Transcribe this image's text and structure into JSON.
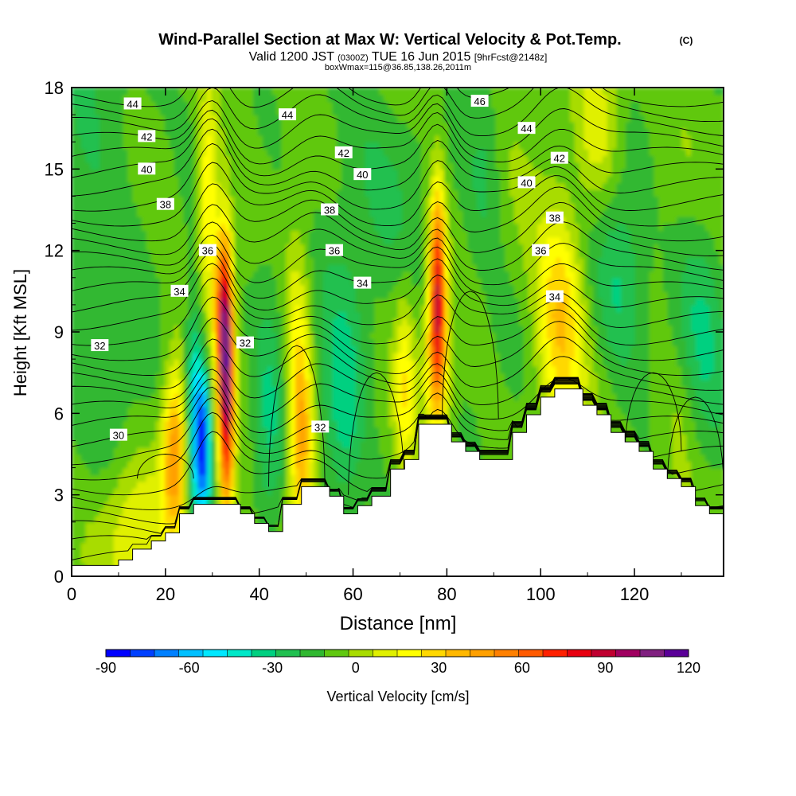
{
  "title": {
    "main": "Wind-Parallel Section at Max W: Vertical Velocity & Pot.Temp.",
    "copyright": "(C)",
    "valid_prefix": "Valid 1200 JST",
    "valid_z": "(0300Z)",
    "valid_date": "TUE 16 Jun 2015",
    "forecast": "[9hrFcst@2148z]",
    "box": "boxWmax=115@36.85,138.26,2011m"
  },
  "chart_data": {
    "type": "heatmap",
    "xlabel": "Distance [nm]",
    "ylabel": "Height [Kft MSL]",
    "xlim": [
      0,
      139
    ],
    "ylim": [
      0,
      18
    ],
    "x_ticks": [
      "0",
      "20",
      "40",
      "60",
      "80",
      "100",
      "120"
    ],
    "y_ticks": [
      "0",
      "3",
      "6",
      "9",
      "12",
      "15",
      "18"
    ],
    "colorbar": {
      "label": "Vertical Velocity [cm/s]",
      "tick_labels": [
        "-90",
        "-60",
        "-30",
        "0",
        "30",
        "60",
        "90",
        "120"
      ],
      "range": [
        -90,
        120
      ],
      "step": 10,
      "colors": [
        "#0000ff",
        "#0040ff",
        "#0080ff",
        "#00c0ff",
        "#00e8ff",
        "#00e8c8",
        "#00d080",
        "#20c050",
        "#30b830",
        "#60c810",
        "#a8dc00",
        "#e0f000",
        "#ffff00",
        "#ffd800",
        "#ffb800",
        "#ffa000",
        "#ff8000",
        "#ff5a00",
        "#ff2000",
        "#e80010",
        "#c00030",
        "#a00060",
        "#802080",
        "#5a0098"
      ]
    },
    "terrain_profile": [
      [
        0,
        0.4
      ],
      [
        10,
        0.4
      ],
      [
        10,
        0.6
      ],
      [
        13,
        0.6
      ],
      [
        13,
        1.0
      ],
      [
        17,
        1.0
      ],
      [
        17,
        1.3
      ],
      [
        20,
        1.3
      ],
      [
        20,
        1.6
      ],
      [
        23,
        1.6
      ],
      [
        23,
        2.3
      ],
      [
        26,
        2.3
      ],
      [
        26,
        2.65
      ],
      [
        36,
        2.65
      ],
      [
        36,
        2.3
      ],
      [
        39,
        2.3
      ],
      [
        39,
        1.95
      ],
      [
        42,
        1.95
      ],
      [
        42,
        1.65
      ],
      [
        45,
        1.65
      ],
      [
        45,
        2.65
      ],
      [
        49,
        2.65
      ],
      [
        49,
        3.3
      ],
      [
        55,
        3.3
      ],
      [
        55,
        2.95
      ],
      [
        58,
        2.95
      ],
      [
        58,
        2.3
      ],
      [
        61,
        2.3
      ],
      [
        61,
        2.6
      ],
      [
        64,
        2.6
      ],
      [
        64,
        2.95
      ],
      [
        68,
        2.95
      ],
      [
        68,
        3.95
      ],
      [
        71,
        3.95
      ],
      [
        71,
        4.3
      ],
      [
        74,
        4.3
      ],
      [
        74,
        5.6
      ],
      [
        81,
        5.6
      ],
      [
        81,
        4.95
      ],
      [
        84,
        4.95
      ],
      [
        84,
        4.6
      ],
      [
        87,
        4.6
      ],
      [
        87,
        4.3
      ],
      [
        94,
        4.3
      ],
      [
        94,
        5.3
      ],
      [
        97,
        5.3
      ],
      [
        97,
        5.95
      ],
      [
        100,
        5.95
      ],
      [
        100,
        6.6
      ],
      [
        103,
        6.6
      ],
      [
        103,
        6.9
      ],
      [
        109,
        6.9
      ],
      [
        109,
        6.3
      ],
      [
        112,
        6.3
      ],
      [
        112,
        5.95
      ],
      [
        115,
        5.95
      ],
      [
        115,
        5.3
      ],
      [
        118,
        5.3
      ],
      [
        118,
        4.95
      ],
      [
        121,
        4.95
      ],
      [
        121,
        4.6
      ],
      [
        124,
        4.6
      ],
      [
        124,
        3.95
      ],
      [
        127,
        3.95
      ],
      [
        127,
        3.6
      ],
      [
        130,
        3.6
      ],
      [
        130,
        3.3
      ],
      [
        133,
        3.3
      ],
      [
        133,
        2.6
      ],
      [
        136,
        2.6
      ],
      [
        136,
        2.3
      ],
      [
        139,
        2.3
      ]
    ],
    "vertical_velocity_cells": [
      {
        "x": 22,
        "z": 4.5,
        "sx": 1.8,
        "sz": 2.2,
        "w": 65
      },
      {
        "x": 28,
        "z": 5.0,
        "sx": 1.2,
        "sz": 2.0,
        "w": -80
      },
      {
        "x": 26,
        "z": 6.5,
        "sx": 1.3,
        "sz": 3.0,
        "w": -40
      },
      {
        "x": 33,
        "z": 7.0,
        "sx": 1.1,
        "sz": 3.5,
        "w": 115
      },
      {
        "x": 32,
        "z": 10.0,
        "sx": 1.3,
        "sz": 2.0,
        "w": 60
      },
      {
        "x": 29,
        "z": 14.0,
        "sx": 1.6,
        "sz": 2.5,
        "w": 45
      },
      {
        "x": 14,
        "z": 1.8,
        "sx": 5.0,
        "sz": 1.8,
        "w": 25
      },
      {
        "x": 42,
        "z": 6.0,
        "sx": 2.5,
        "sz": 3.5,
        "w": -22
      },
      {
        "x": 49,
        "z": 5.0,
        "sx": 1.8,
        "sz": 2.5,
        "w": 60
      },
      {
        "x": 48,
        "z": 9.5,
        "sx": 2.0,
        "sz": 2.5,
        "w": 25
      },
      {
        "x": 58,
        "z": 6.0,
        "sx": 3.0,
        "sz": 3.0,
        "w": -25
      },
      {
        "x": 71,
        "z": 7.0,
        "sx": 1.5,
        "sz": 2.5,
        "w": 30
      },
      {
        "x": 78,
        "z": 11.0,
        "sx": 1.2,
        "sz": 2.5,
        "w": 90
      },
      {
        "x": 78,
        "z": 8.0,
        "sx": 1.8,
        "sz": 2.0,
        "w": 50
      },
      {
        "x": 104,
        "z": 9.5,
        "sx": 3.5,
        "sz": 3.0,
        "w": 45
      },
      {
        "x": 88,
        "z": 15.0,
        "sx": 3.0,
        "sz": 2.5,
        "w": -18
      },
      {
        "x": 112,
        "z": 16.5,
        "sx": 3.0,
        "sz": 2.0,
        "w": 25
      },
      {
        "x": 117,
        "z": 10.5,
        "sx": 4.0,
        "sz": 2.5,
        "w": -25
      },
      {
        "x": 134,
        "z": 9.0,
        "sx": 4.0,
        "sz": 3.5,
        "w": -22
      },
      {
        "x": 130,
        "z": 5.5,
        "sx": 3.0,
        "sz": 2.5,
        "w": 15
      },
      {
        "x": 5,
        "z": 14.0,
        "sx": 8.0,
        "sz": 6.0,
        "w": -15
      },
      {
        "x": 60,
        "z": 13.0,
        "sx": 10.0,
        "sz": 4.0,
        "w": -12
      }
    ],
    "theta_contours": [
      {
        "label": "30",
        "z": 3.8,
        "label_at": [
          10,
          5.2
        ]
      },
      {
        "label": "32",
        "z": 8.8,
        "label_at": [
          6,
          8.5
        ]
      },
      {
        "label": "32",
        "label_at": [
          37,
          8.6
        ]
      },
      {
        "label": "32",
        "label_at": [
          53,
          5.5
        ]
      },
      {
        "label": "34",
        "z": 10.4,
        "label_at": [
          23,
          10.5
        ]
      },
      {
        "label": "34",
        "label_at": [
          62,
          10.8
        ]
      },
      {
        "label": "34",
        "label_at": [
          103,
          10.3
        ]
      },
      {
        "label": "36",
        "z": 12.0,
        "label_at": [
          29,
          12.0
        ]
      },
      {
        "label": "36",
        "label_at": [
          56,
          12.0
        ]
      },
      {
        "label": "36",
        "label_at": [
          100,
          12.0
        ]
      },
      {
        "label": "38",
        "z": 13.7,
        "label_at": [
          20,
          13.7
        ]
      },
      {
        "label": "38",
        "label_at": [
          55,
          13.5
        ]
      },
      {
        "label": "38",
        "label_at": [
          103,
          13.2
        ]
      },
      {
        "label": "40",
        "z": 15.0,
        "label_at": [
          16,
          15.0
        ]
      },
      {
        "label": "40",
        "label_at": [
          62,
          14.8
        ]
      },
      {
        "label": "40",
        "label_at": [
          97,
          14.5
        ]
      },
      {
        "label": "42",
        "z": 16.2,
        "label_at": [
          16,
          16.2
        ]
      },
      {
        "label": "42",
        "label_at": [
          58,
          15.6
        ]
      },
      {
        "label": "42",
        "label_at": [
          104,
          15.4
        ]
      },
      {
        "label": "44",
        "z": 17.4,
        "label_at": [
          13,
          17.4
        ]
      },
      {
        "label": "44",
        "label_at": [
          46,
          17.0
        ]
      },
      {
        "label": "44",
        "label_at": [
          97,
          16.5
        ]
      },
      {
        "label": "46",
        "label_at": [
          87,
          17.5
        ]
      }
    ]
  }
}
